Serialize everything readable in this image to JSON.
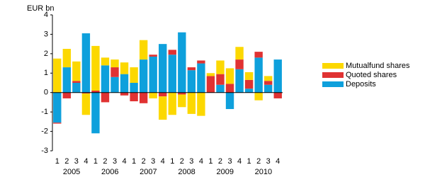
{
  "chart_data": {
    "type": "stacked-bar",
    "y_label": "EUR bn",
    "categories": [
      "1",
      "2",
      "3",
      "4",
      "1",
      "2",
      "3",
      "4",
      "1",
      "2",
      "3",
      "4",
      "1",
      "2",
      "3",
      "4",
      "1",
      "2",
      "3",
      "4",
      "1",
      "2",
      "3",
      "4"
    ],
    "groups": [
      "2005",
      "2006",
      "2007",
      "2008",
      "2009",
      "2010"
    ],
    "series": [
      {
        "name": "Deposits",
        "color": "#0ea0dc",
        "values": [
          -1.55,
          1.3,
          0.5,
          3.05,
          -2.1,
          1.4,
          0.8,
          0.95,
          0.5,
          1.7,
          1.85,
          2.5,
          1.95,
          3.1,
          1.15,
          1.5,
          0,
          0.4,
          -0.85,
          1.2,
          0.2,
          1.8,
          0.4,
          1.7
        ]
      },
      {
        "name": "Quoted shares",
        "color": "#e03232",
        "values": [
          -0.05,
          -0.3,
          0.1,
          -0.05,
          0.1,
          -0.5,
          0.5,
          -0.15,
          -0.45,
          -0.55,
          0.1,
          -0.2,
          0.25,
          -0.1,
          0.15,
          0.15,
          0.85,
          0.55,
          0.45,
          0.5,
          0.45,
          0.3,
          0.2,
          -0.3
        ]
      },
      {
        "name": "Mutualfund shares",
        "color": "#fcd800",
        "values": [
          1.75,
          0.95,
          1.0,
          -1.1,
          2.3,
          0.4,
          0.4,
          0.6,
          0.8,
          1.0,
          -0.3,
          -1.2,
          -1.15,
          -0.65,
          -1.1,
          -1.2,
          0.15,
          0.7,
          0.8,
          0.65,
          0.4,
          -0.4,
          0.25,
          0
        ]
      }
    ],
    "ylim": [
      -3,
      4
    ],
    "yticks": [
      -3,
      -2,
      -1,
      0,
      1,
      2,
      3,
      4
    ],
    "grid": false,
    "legend": "right"
  }
}
